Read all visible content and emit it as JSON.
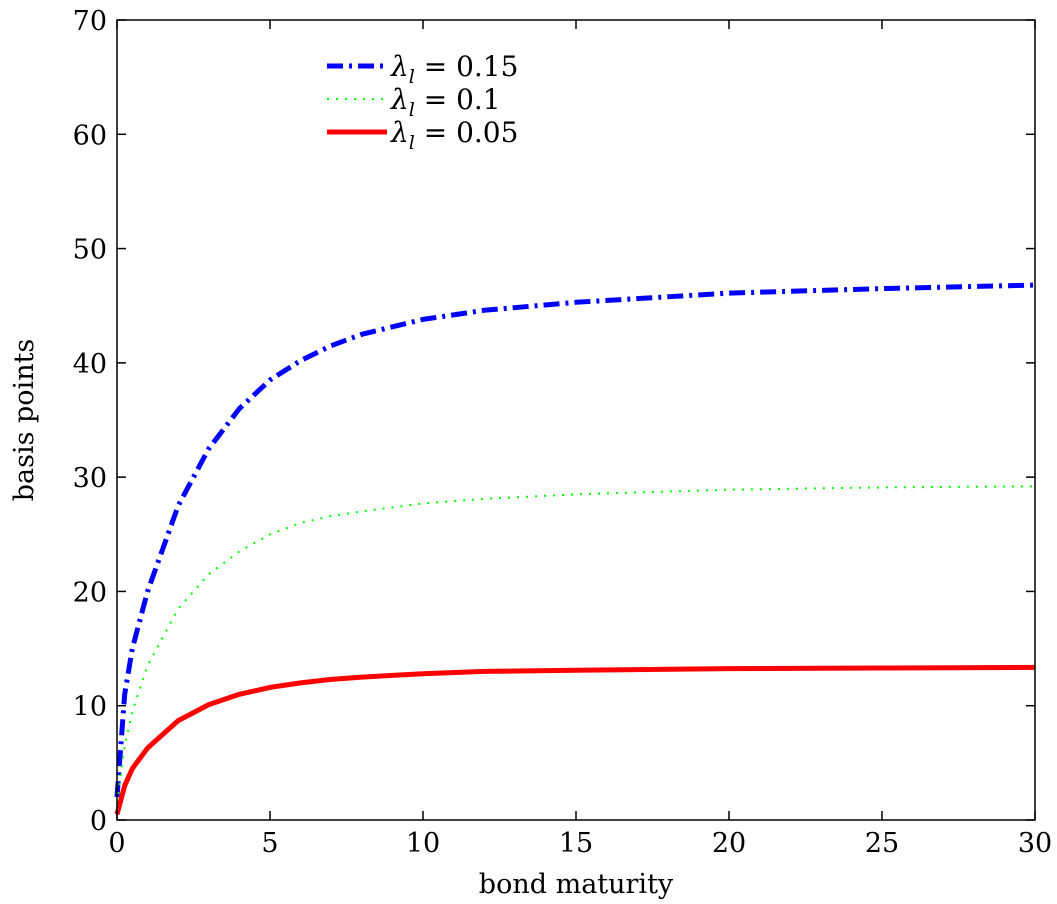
{
  "chart_data": {
    "type": "line",
    "title": "",
    "xlabel": "bond maturity",
    "ylabel": "basis points",
    "xlim": [
      0,
      30
    ],
    "ylim": [
      0,
      70
    ],
    "xticks": [
      0,
      5,
      10,
      15,
      20,
      25,
      30
    ],
    "yticks": [
      0,
      10,
      20,
      30,
      40,
      50,
      60,
      70
    ],
    "grid": false,
    "legend_position": "top-left",
    "series": [
      {
        "legend_symbol": "λ",
        "legend_subscript": "l",
        "legend_value": " = 0.15",
        "color": "#0000ff",
        "style": "dash-dot",
        "x": [
          0,
          0.25,
          0.5,
          1,
          2,
          3,
          4,
          5,
          6,
          7,
          8,
          10,
          12,
          15,
          20,
          25,
          30
        ],
        "y": [
          2,
          11,
          15,
          20,
          27.5,
          32.5,
          36,
          38.5,
          40.2,
          41.5,
          42.5,
          43.8,
          44.6,
          45.3,
          46.1,
          46.5,
          46.8
        ]
      },
      {
        "legend_symbol": "λ",
        "legend_subscript": "l",
        "legend_value": " = 0.1",
        "color": "#00ff00",
        "style": "dotted",
        "x": [
          0,
          0.25,
          0.5,
          1,
          2,
          3,
          4,
          5,
          6,
          7,
          8,
          10,
          12,
          15,
          20,
          25,
          30
        ],
        "y": [
          1.5,
          6.5,
          9.5,
          13.5,
          18.5,
          21.5,
          23.5,
          25,
          26,
          26.6,
          27,
          27.7,
          28.1,
          28.5,
          28.9,
          29.1,
          29.2
        ]
      },
      {
        "legend_symbol": "λ",
        "legend_subscript": "l",
        "legend_value": " = 0.05",
        "color": "#ff0000",
        "style": "solid",
        "x": [
          0,
          0.25,
          0.5,
          1,
          2,
          3,
          4,
          5,
          6,
          7,
          8,
          10,
          12,
          15,
          20,
          25,
          30
        ],
        "y": [
          0.5,
          3,
          4.5,
          6.3,
          8.7,
          10.1,
          11,
          11.6,
          12,
          12.3,
          12.5,
          12.8,
          13,
          13.1,
          13.25,
          13.3,
          13.35
        ]
      }
    ]
  }
}
